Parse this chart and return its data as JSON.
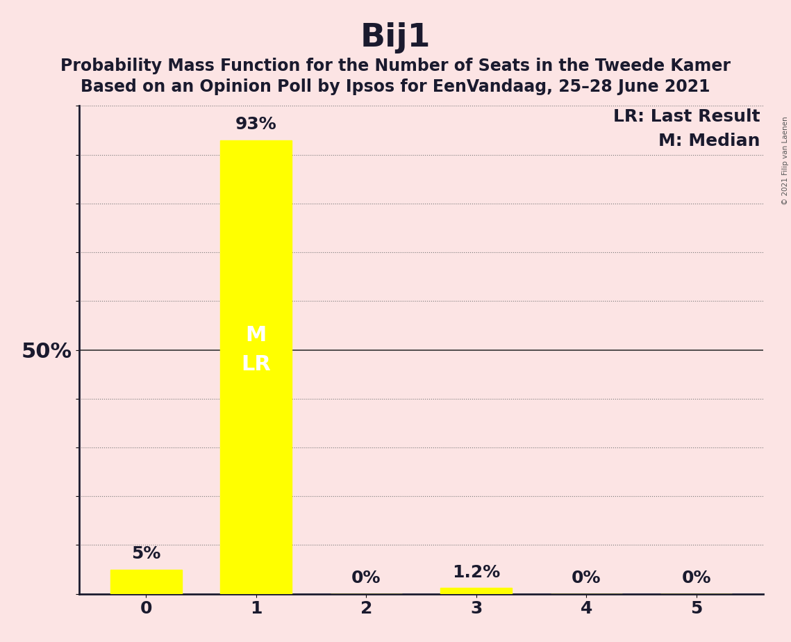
{
  "title": "Bij1",
  "subtitle1": "Probability Mass Function for the Number of Seats in the Tweede Kamer",
  "subtitle2": "Based on an Opinion Poll by Ipsos for EenVandaag, 25–28 June 2021",
  "categories": [
    0,
    1,
    2,
    3,
    4,
    5
  ],
  "values": [
    5.0,
    93.0,
    0.0,
    1.2,
    0.0,
    0.0
  ],
  "bar_color": "#ffff00",
  "background_color": "#fce4e4",
  "bar_labels": [
    "5%",
    "93%",
    "0%",
    "1.2%",
    "0%",
    "0%"
  ],
  "median_bar": 1,
  "last_result_bar": 1,
  "ylim": [
    0,
    100
  ],
  "ytick_positions": [
    0,
    10,
    20,
    30,
    40,
    50,
    60,
    70,
    80,
    90,
    100
  ],
  "legend_text1": "LR: Last Result",
  "legend_text2": "M: Median",
  "copyright_text": "© 2021 Filip van Laenen",
  "title_fontsize": 34,
  "subtitle_fontsize": 17,
  "tick_fontsize": 18,
  "bar_label_fontsize": 18,
  "legend_fontsize": 18,
  "inner_label_fontsize": 22,
  "ylabel_50_fontsize": 22
}
